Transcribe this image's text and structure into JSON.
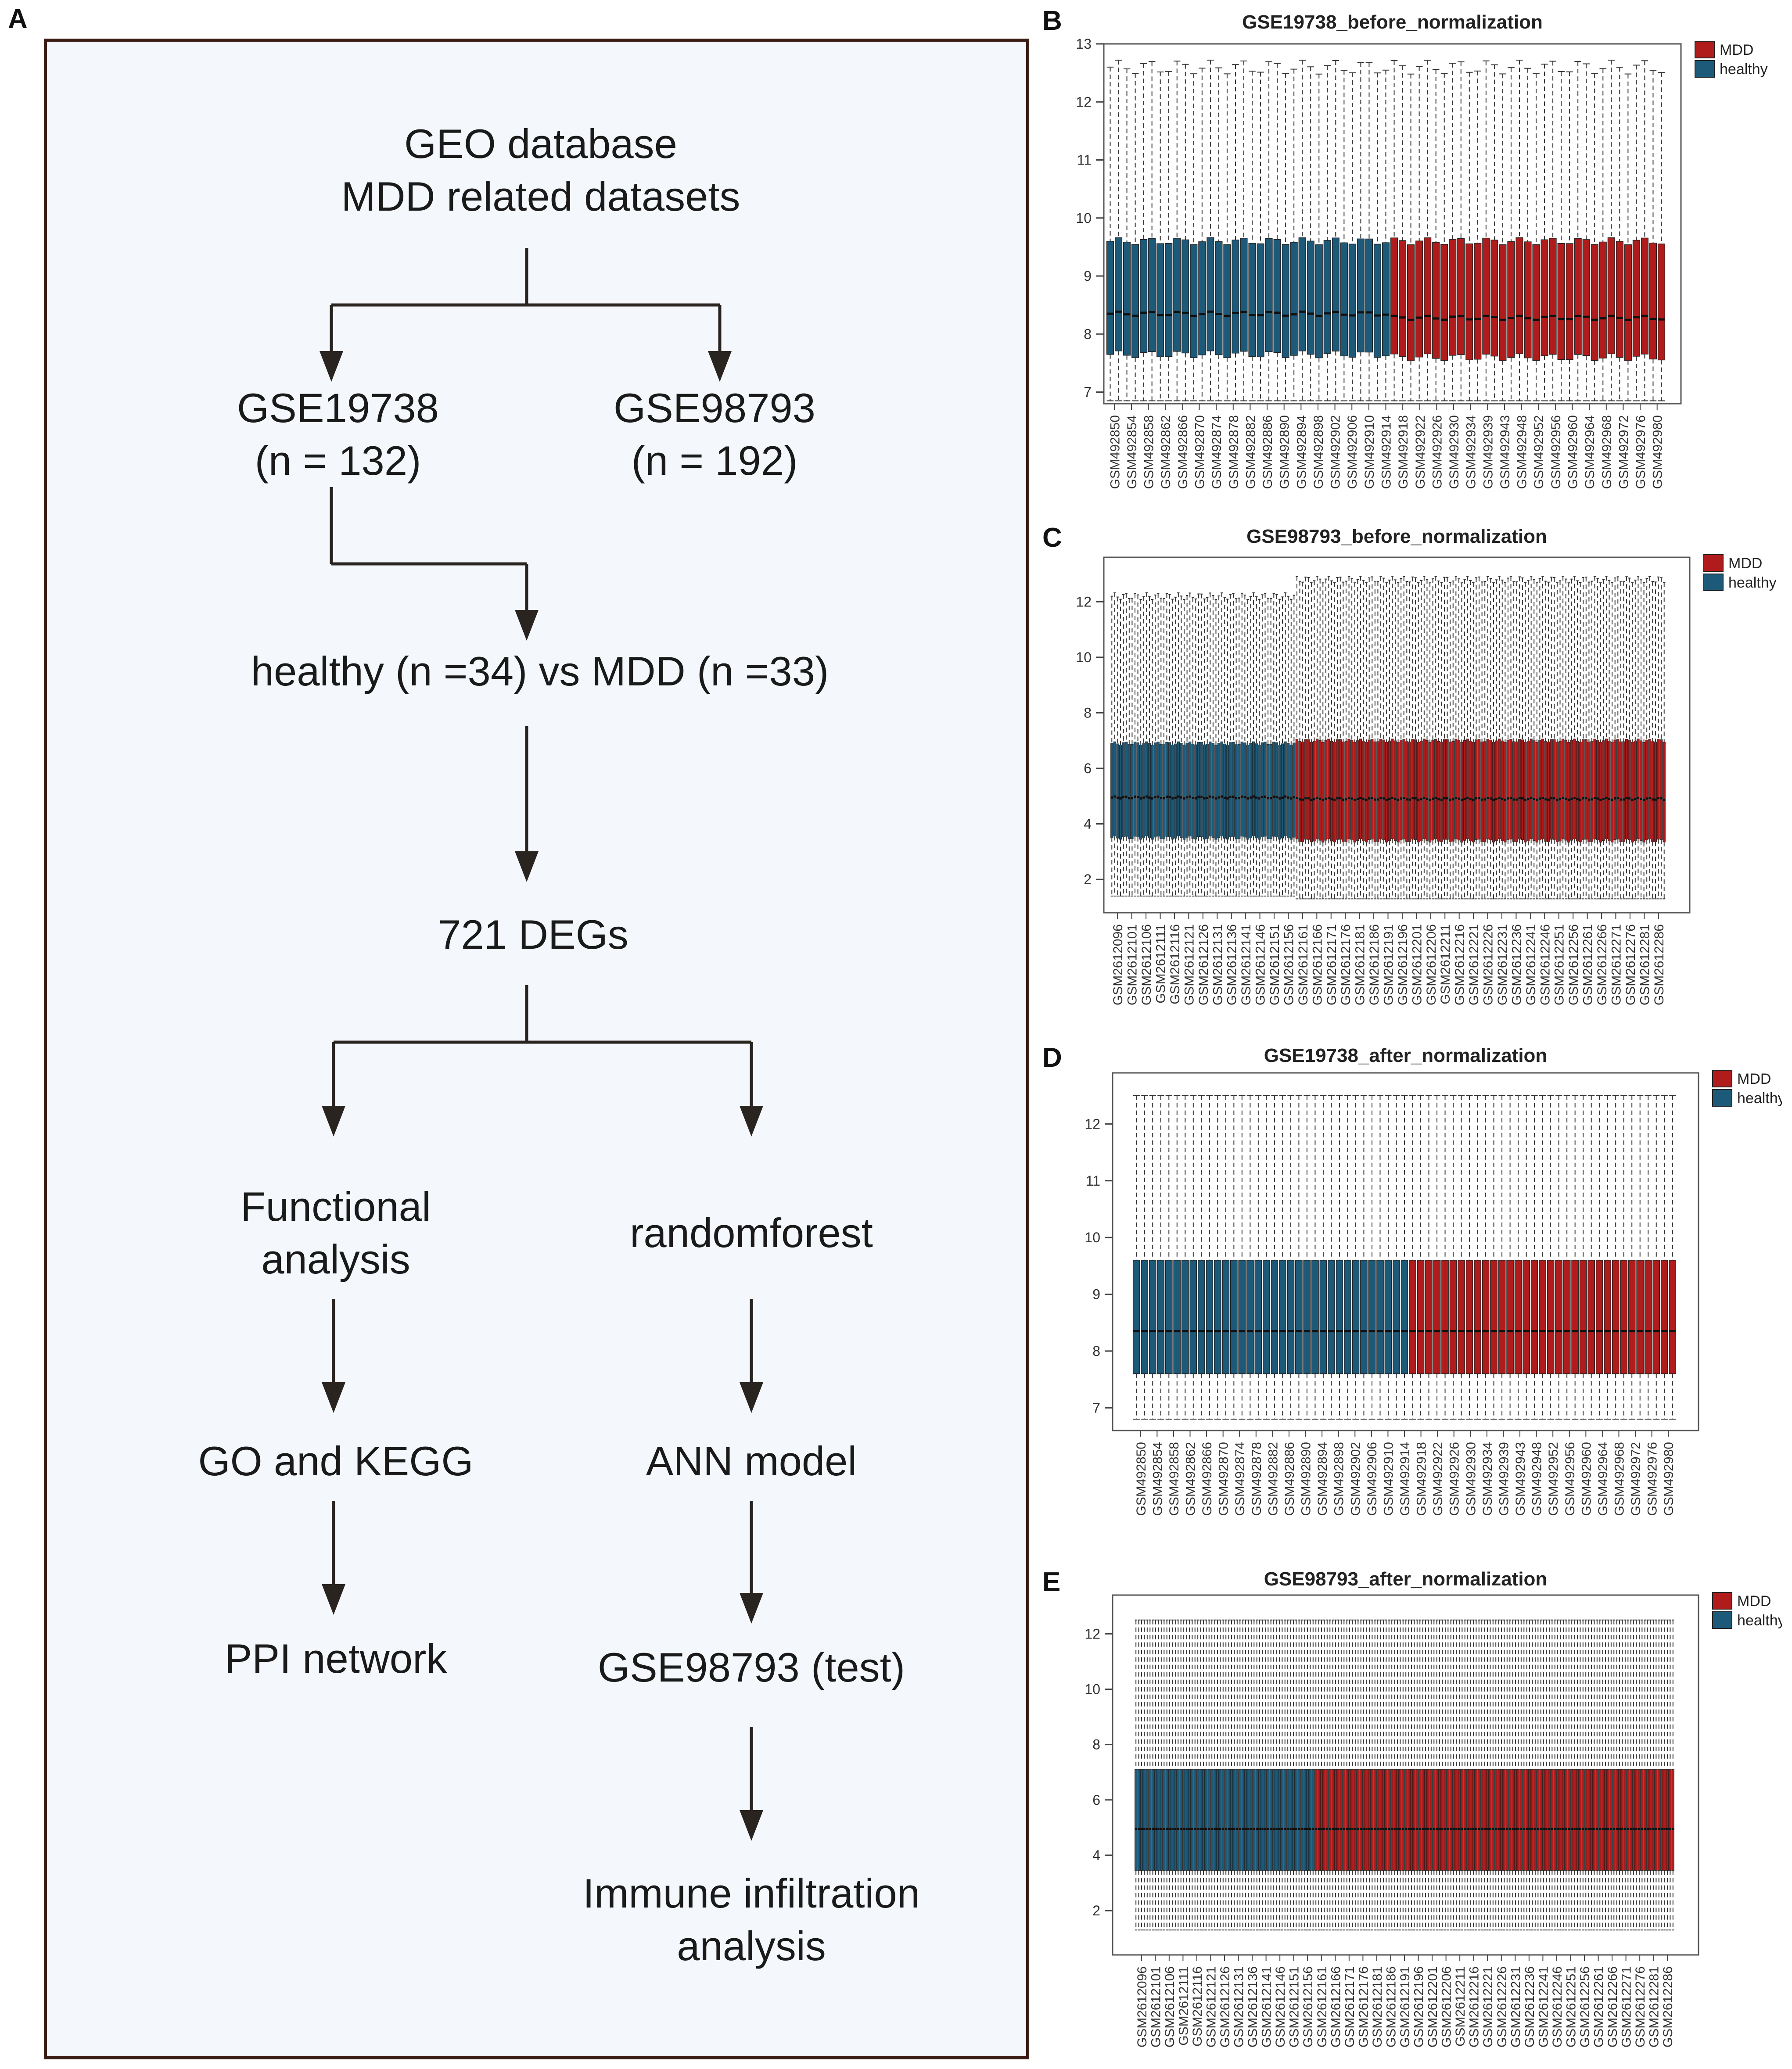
{
  "panel_labels": {
    "a": "A",
    "b": "B",
    "c": "C",
    "d": "D",
    "e": "E"
  },
  "flowchart": {
    "geo_line1": "GEO database",
    "geo_line2": "MDD related datasets",
    "ds1_name": "GSE19738",
    "ds1_n": "(n = 132)",
    "ds2_name": "GSE98793",
    "ds2_n": "(n = 192)",
    "comparison": "healthy (n =34) vs MDD (n =33)",
    "degs": "721 DEGs",
    "functional_line1": "Functional",
    "functional_line2": "analysis",
    "randomforest": "randomforest",
    "go_kegg": "GO and KEGG",
    "ann_model": "ANN model",
    "ppi": "PPI network",
    "test": "GSE98793 (test)",
    "immune_line1": "Immune infiltration",
    "immune_line2": "analysis"
  },
  "colors": {
    "mdd": "#b01c1c",
    "healthy": "#1d5a7a",
    "frame": "#3b1c14",
    "flow_bg": "#f4f8fc"
  },
  "chart_data": [
    {
      "id": "B",
      "type": "box",
      "title": "GSE19738_before_normalization",
      "legend": [
        "MDD",
        "healthy"
      ],
      "legend_position": "top-right",
      "yticks": [
        7,
        8,
        9,
        10,
        11,
        12,
        13
      ],
      "ylim": [
        6.8,
        13.0
      ],
      "n_boxes": 67,
      "n_healthy": 34,
      "healthy": {
        "q1": 7.65,
        "median": 8.35,
        "q3": 9.6,
        "lower_whisker": 6.85,
        "upper_whisker": 12.6
      },
      "mdd": {
        "q1": 7.6,
        "median": 8.28,
        "q3": 9.6,
        "lower_whisker": 6.85,
        "upper_whisker": 12.6
      },
      "xlabels": [
        "GSM492850",
        "GSM492854",
        "GSM492858",
        "GSM492862",
        "GSM492866",
        "GSM492870",
        "GSM492874",
        "GSM492878",
        "GSM492882",
        "GSM492886",
        "GSM492890",
        "GSM492894",
        "GSM492898",
        "GSM492902",
        "GSM492906",
        "GSM492910",
        "GSM492914",
        "GSM492918",
        "GSM492922",
        "GSM492926",
        "GSM492930",
        "GSM492934",
        "GSM492939",
        "GSM492943",
        "GSM492948",
        "GSM492952",
        "GSM492956",
        "GSM492960",
        "GSM492964",
        "GSM492968",
        "GSM492972",
        "GSM492976",
        "GSM492980"
      ]
    },
    {
      "id": "C",
      "type": "box",
      "title": "GSE98793_before_normalization",
      "legend": [
        "MDD",
        "healthy"
      ],
      "legend_position": "top-right",
      "yticks": [
        2,
        4,
        6,
        8,
        10,
        12
      ],
      "ylim": [
        0.8,
        13.6
      ],
      "n_boxes": 192,
      "n_healthy": 64,
      "healthy": {
        "q1": 3.5,
        "median": 4.95,
        "q3": 6.9,
        "lower_whisker": 1.4,
        "upper_whisker": 12.2
      },
      "mdd": {
        "q1": 3.4,
        "median": 4.9,
        "q3": 7.0,
        "lower_whisker": 1.3,
        "upper_whisker": 12.8
      },
      "xlabels": [
        "GSM2612096",
        "GSM2612101",
        "GSM2612106",
        "GSM2612111",
        "GSM2612116",
        "GSM2612121",
        "GSM2612126",
        "GSM2612131",
        "GSM2612136",
        "GSM2612141",
        "GSM2612146",
        "GSM2612151",
        "GSM2612156",
        "GSM2612161",
        "GSM2612166",
        "GSM2612171",
        "GSM2612176",
        "GSM2612181",
        "GSM2612186",
        "GSM2612191",
        "GSM2612196",
        "GSM2612201",
        "GSM2612206",
        "GSM2612211",
        "GSM2612216",
        "GSM2612221",
        "GSM2612226",
        "GSM2612231",
        "GSM2612236",
        "GSM2612241",
        "GSM2612246",
        "GSM2612251",
        "GSM2612256",
        "GSM2612261",
        "GSM2612266",
        "GSM2612271",
        "GSM2612276",
        "GSM2612281",
        "GSM2612286"
      ]
    },
    {
      "id": "D",
      "type": "box",
      "title": "GSE19738_after_normalization",
      "legend": [
        "MDD",
        "healthy"
      ],
      "legend_position": "top-right",
      "yticks": [
        7,
        8,
        9,
        10,
        11,
        12
      ],
      "ylim": [
        6.6,
        12.9
      ],
      "n_boxes": 67,
      "n_healthy": 34,
      "healthy": {
        "q1": 7.6,
        "median": 8.35,
        "q3": 9.6,
        "lower_whisker": 6.8,
        "upper_whisker": 12.5
      },
      "mdd": {
        "q1": 7.6,
        "median": 8.35,
        "q3": 9.6,
        "lower_whisker": 6.8,
        "upper_whisker": 12.5
      },
      "xlabels": [
        "GSM492850",
        "GSM492854",
        "GSM492858",
        "GSM492862",
        "GSM492866",
        "GSM492870",
        "GSM492874",
        "GSM492878",
        "GSM492882",
        "GSM492886",
        "GSM492890",
        "GSM492894",
        "GSM492898",
        "GSM492902",
        "GSM492906",
        "GSM492910",
        "GSM492914",
        "GSM492918",
        "GSM492922",
        "GSM492926",
        "GSM492930",
        "GSM492934",
        "GSM492939",
        "GSM492943",
        "GSM492948",
        "GSM492952",
        "GSM492956",
        "GSM492960",
        "GSM492964",
        "GSM492968",
        "GSM492972",
        "GSM492976",
        "GSM492980"
      ]
    },
    {
      "id": "E",
      "type": "box",
      "title": "GSE98793_after_normalization",
      "legend": [
        "MDD",
        "healthy"
      ],
      "legend_position": "top-right",
      "yticks": [
        2,
        4,
        6,
        8,
        10,
        12
      ],
      "ylim": [
        0.4,
        13.4
      ],
      "n_boxes": 192,
      "n_healthy": 64,
      "healthy": {
        "q1": 3.45,
        "median": 4.95,
        "q3": 7.1,
        "lower_whisker": 1.3,
        "upper_whisker": 12.5
      },
      "mdd": {
        "q1": 3.45,
        "median": 4.95,
        "q3": 7.1,
        "lower_whisker": 1.3,
        "upper_whisker": 12.5
      },
      "xlabels": [
        "GSM2612096",
        "GSM2612101",
        "GSM2612106",
        "GSM2612111",
        "GSM2612116",
        "GSM2612121",
        "GSM2612126",
        "GSM2612131",
        "GSM2612136",
        "GSM2612141",
        "GSM2612146",
        "GSM2612151",
        "GSM2612156",
        "GSM2612161",
        "GSM2612166",
        "GSM2612171",
        "GSM2612176",
        "GSM2612181",
        "GSM2612186",
        "GSM2612191",
        "GSM2612196",
        "GSM2612201",
        "GSM2612206",
        "GSM2612211",
        "GSM2612216",
        "GSM2612221",
        "GSM2612226",
        "GSM2612231",
        "GSM2612236",
        "GSM2612241",
        "GSM2612246",
        "GSM2612251",
        "GSM2612256",
        "GSM2612261",
        "GSM2612266",
        "GSM2612271",
        "GSM2612276",
        "GSM2612281",
        "GSM2612286"
      ]
    }
  ]
}
